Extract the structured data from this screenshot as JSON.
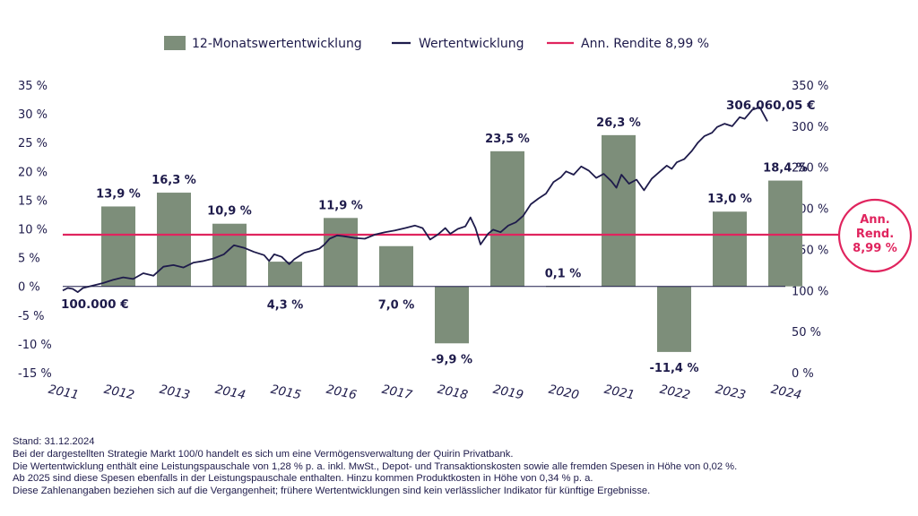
{
  "chart_data": {
    "type": "bar",
    "legend": {
      "bars": "12-Monatswertentwicklung",
      "line": "Wertentwicklung",
      "ref": "Ann. Rendite 8,99 %"
    },
    "colors": {
      "bar": "#7d8e7a",
      "line": "#1e1b4b",
      "ref": "#e0245e",
      "text": "#1e1b4b"
    },
    "left_axis": {
      "min": -15,
      "max": 35,
      "step": 5,
      "labels": [
        "35 %",
        "30 %",
        "25 %",
        "20 %",
        "15 %",
        "10 %",
        "5 %",
        "0 %",
        "-5 %",
        "-10 %",
        "-15 %"
      ]
    },
    "right_axis": {
      "min": 0,
      "max": 350,
      "step": 50,
      "labels": [
        "350 %",
        "300 %",
        "250 %",
        "200 %",
        "150 %",
        "100 %",
        "50 %",
        "0 %"
      ]
    },
    "categories": [
      "2011",
      "2012",
      "2013",
      "2014",
      "2015",
      "2016",
      "2017",
      "2018",
      "2019",
      "2020",
      "2021",
      "2022",
      "2023",
      "2024"
    ],
    "bars": [
      {
        "year": "2012",
        "value": 13.9,
        "label": "13,9 %"
      },
      {
        "year": "2013",
        "value": 16.3,
        "label": "16,3 %"
      },
      {
        "year": "2014",
        "value": 10.9,
        "label": "10,9 %"
      },
      {
        "year": "2015",
        "value": 4.3,
        "label": "4,3 %"
      },
      {
        "year": "2016",
        "value": 11.9,
        "label": "11,9 %"
      },
      {
        "year": "2017",
        "value": 7.0,
        "label": "7,0 %"
      },
      {
        "year": "2018",
        "value": -9.9,
        "label": "-9,9 %"
      },
      {
        "year": "2019",
        "value": 23.5,
        "label": "23,5 %"
      },
      {
        "year": "2020",
        "value": 0.1,
        "label": "0,1 %"
      },
      {
        "year": "2021",
        "value": 26.3,
        "label": "26,3 %"
      },
      {
        "year": "2022",
        "value": -11.4,
        "label": "-11,4 %"
      },
      {
        "year": "2023",
        "value": 13.0,
        "label": "13,0 %"
      },
      {
        "year": "2024",
        "value": 18.4,
        "label": "18,4 %"
      }
    ],
    "reference_value": 8.99,
    "performance_line": [
      [
        2011.0,
        100
      ],
      [
        2011.1,
        103
      ],
      [
        2011.2,
        102
      ],
      [
        2011.3,
        98
      ],
      [
        2011.4,
        103
      ],
      [
        2011.6,
        106
      ],
      [
        2011.8,
        109
      ],
      [
        2012.0,
        113
      ],
      [
        2012.2,
        116
      ],
      [
        2012.4,
        114
      ],
      [
        2012.6,
        121
      ],
      [
        2012.8,
        118
      ],
      [
        2013.0,
        129
      ],
      [
        2013.2,
        131
      ],
      [
        2013.4,
        128
      ],
      [
        2013.6,
        134
      ],
      [
        2013.8,
        136
      ],
      [
        2014.0,
        139
      ],
      [
        2014.2,
        144
      ],
      [
        2014.4,
        155
      ],
      [
        2014.6,
        152
      ],
      [
        2014.8,
        147
      ],
      [
        2015.0,
        143
      ],
      [
        2015.1,
        136
      ],
      [
        2015.2,
        144
      ],
      [
        2015.35,
        141
      ],
      [
        2015.5,
        132
      ],
      [
        2015.6,
        138
      ],
      [
        2015.8,
        146
      ],
      [
        2016.0,
        149
      ],
      [
        2016.1,
        151
      ],
      [
        2016.2,
        156
      ],
      [
        2016.3,
        163
      ],
      [
        2016.45,
        167
      ],
      [
        2016.6,
        166
      ],
      [
        2016.8,
        164
      ],
      [
        2017.0,
        163
      ],
      [
        2017.2,
        168
      ],
      [
        2017.4,
        171
      ],
      [
        2017.6,
        173
      ],
      [
        2017.8,
        176
      ],
      [
        2018.0,
        179
      ],
      [
        2018.15,
        176
      ],
      [
        2018.3,
        162
      ],
      [
        2018.45,
        168
      ],
      [
        2018.6,
        176
      ],
      [
        2018.7,
        169
      ],
      [
        2018.85,
        175
      ],
      [
        2019.0,
        178
      ],
      [
        2019.1,
        189
      ],
      [
        2019.2,
        176
      ],
      [
        2019.3,
        156
      ],
      [
        2019.45,
        169
      ],
      [
        2019.55,
        174
      ],
      [
        2019.7,
        171
      ],
      [
        2019.85,
        179
      ],
      [
        2020.0,
        183
      ],
      [
        2020.15,
        191
      ],
      [
        2020.3,
        205
      ],
      [
        2020.45,
        212
      ],
      [
        2020.6,
        218
      ],
      [
        2020.75,
        232
      ],
      [
        2020.9,
        238
      ],
      [
        2021.0,
        245
      ],
      [
        2021.15,
        241
      ],
      [
        2021.3,
        251
      ],
      [
        2021.45,
        246
      ],
      [
        2021.6,
        237
      ],
      [
        2021.75,
        242
      ],
      [
        2021.9,
        233
      ],
      [
        2022.0,
        225
      ],
      [
        2022.1,
        241
      ],
      [
        2022.25,
        230
      ],
      [
        2022.4,
        235
      ],
      [
        2022.55,
        222
      ],
      [
        2022.7,
        236
      ],
      [
        2022.85,
        244
      ],
      [
        2023.0,
        252
      ],
      [
        2023.1,
        248
      ],
      [
        2023.2,
        256
      ],
      [
        2023.35,
        260
      ],
      [
        2023.5,
        270
      ],
      [
        2023.62,
        280
      ],
      [
        2023.75,
        288
      ],
      [
        2023.9,
        292
      ],
      [
        2024.0,
        299
      ],
      [
        2024.15,
        303
      ],
      [
        2024.3,
        300
      ],
      [
        2024.45,
        311
      ],
      [
        2024.55,
        309
      ],
      [
        2024.7,
        320
      ],
      [
        2024.85,
        323
      ],
      [
        2025.0,
        306
      ]
    ],
    "start_label": "100.000 €",
    "end_label": "306.060,05 €",
    "badge": {
      "line1": "Ann.",
      "line2": "Rend.",
      "line3": "8,99 %"
    }
  },
  "footnotes": {
    "date": "Stand: 31.12.2024",
    "line1": "Bei der dargestellten Strategie Markt 100/0 handelt es sich um eine Vermögensverwaltung der Quirin Privatbank.",
    "line2": "Die Wertentwicklung enthält eine Leistungspauschale von 1,28 % p. a. inkl. MwSt., Depot- und Transaktionskosten sowie alle fremden Spesen in Höhe von 0,02 %.",
    "line3": "Ab 2025 sind diese Spesen ebenfalls in der Leistungspauschale enthalten. Hinzu kommen Produktkosten in Höhe von 0,34 % p. a.",
    "line4": "Diese Zahlenangaben beziehen sich auf die Vergangenheit; frühere Wertentwicklungen sind kein verlässlicher Indikator für künftige Ergebnisse."
  }
}
